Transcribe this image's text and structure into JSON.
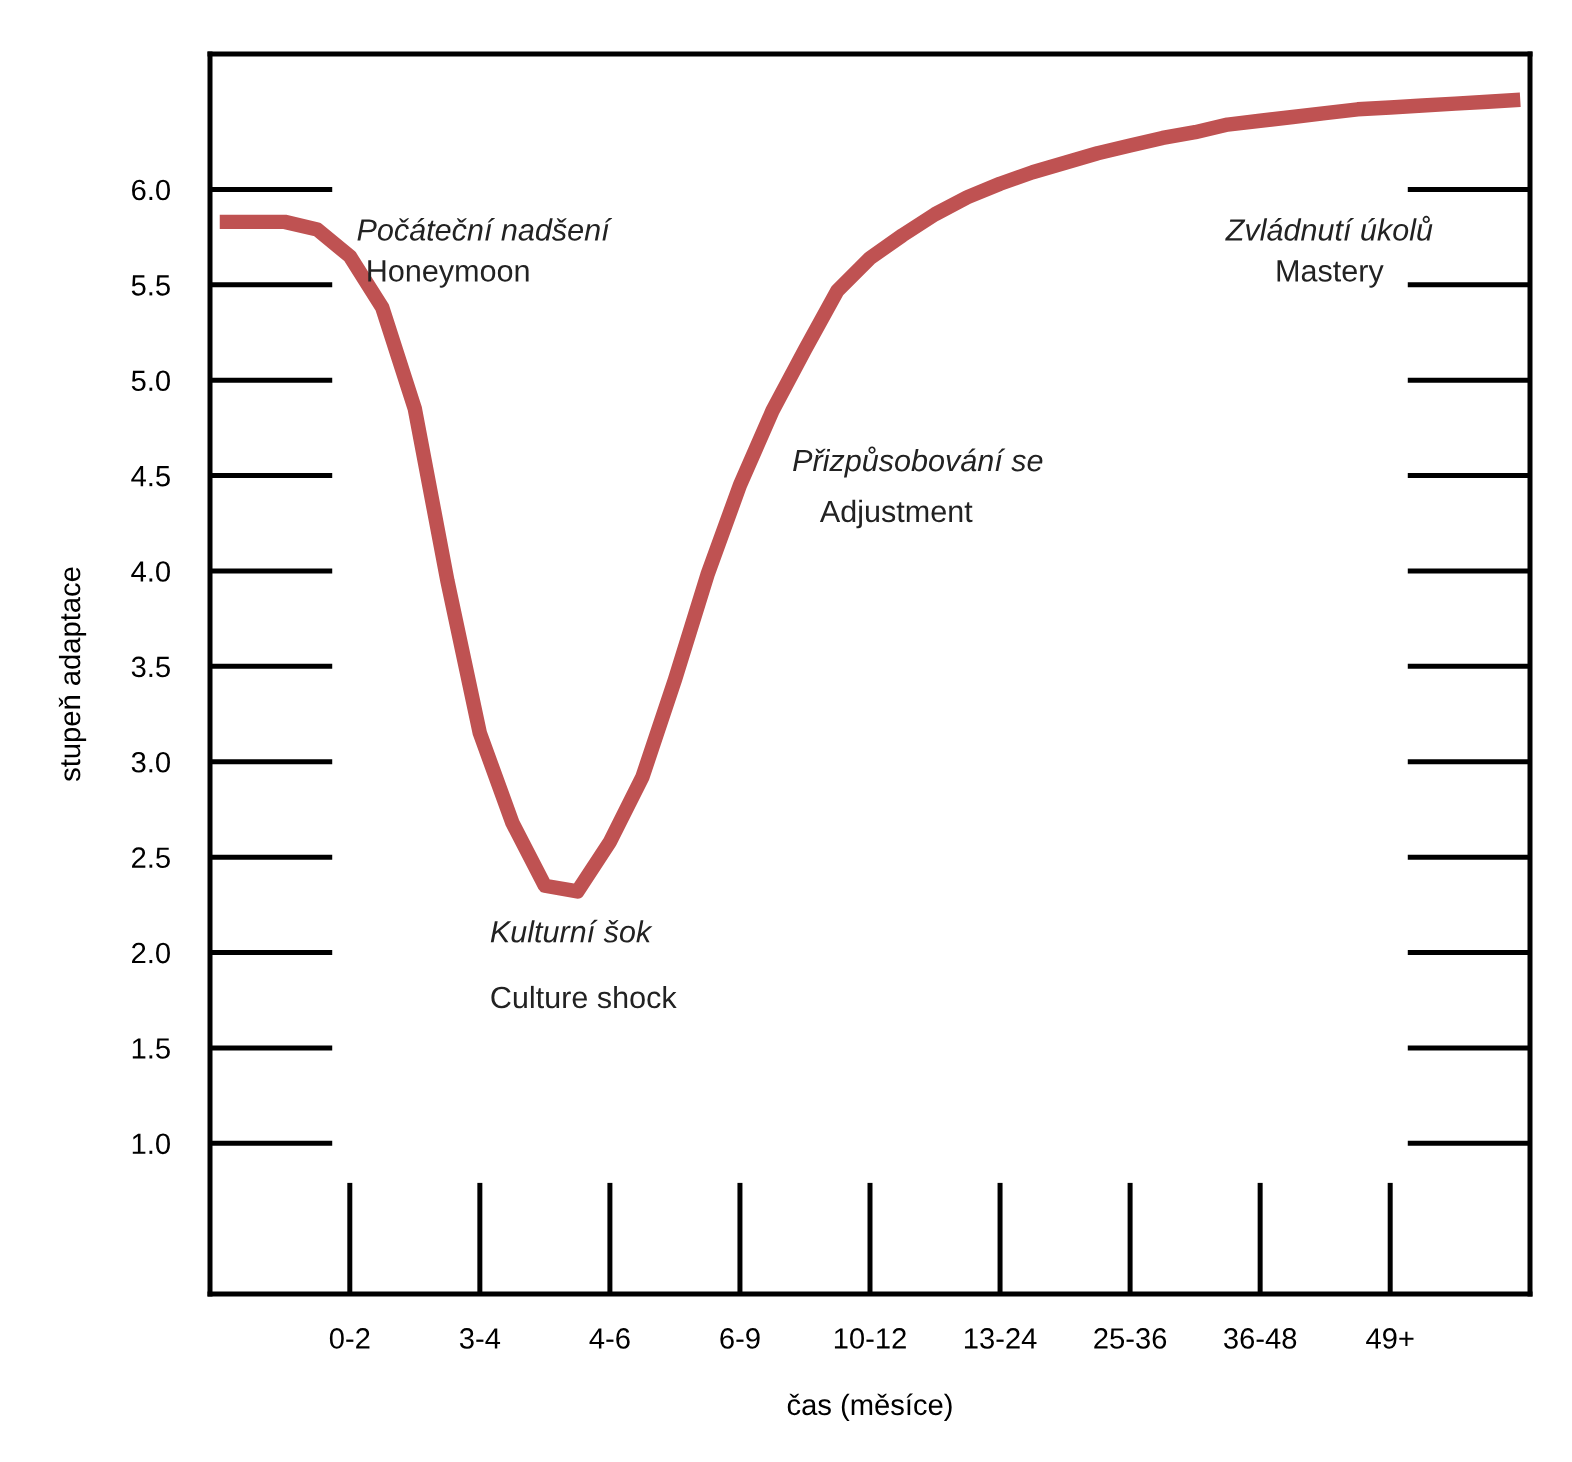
{
  "chart_data": {
    "type": "line",
    "xlabel": "čas (měsíce)",
    "ylabel": "stupeň adaptace",
    "categories": [
      null,
      null,
      null,
      null,
      "0-2",
      null,
      null,
      null,
      "3-4",
      null,
      null,
      null,
      "4-6",
      null,
      null,
      null,
      "6-9",
      null,
      null,
      null,
      "10-12",
      null,
      null,
      null,
      "13-24",
      null,
      null,
      null,
      "25-36",
      null,
      null,
      null,
      "36-48",
      null,
      null,
      null,
      "49+",
      null,
      null,
      null,
      null
    ],
    "ylim": [
      0.21,
      6.71
    ],
    "yticks": [
      {
        "value": 1,
        "label": "1.0"
      },
      1.5,
      {
        "value": 2,
        "label": "2.0"
      },
      2.5,
      {
        "value": 3,
        "label": "3.0"
      },
      3.5,
      {
        "value": 4,
        "label": "4.0"
      },
      4.5,
      {
        "value": 5,
        "label": "5.0"
      },
      5.5,
      {
        "value": 6,
        "label": "6.0"
      }
    ],
    "series": [
      {
        "color": "#bf5252",
        "values": [
          5.83,
          5.83,
          5.83,
          5.79,
          5.65,
          5.38,
          4.85,
          3.95,
          3.15,
          2.68,
          2.35,
          2.32,
          2.58,
          2.92,
          3.43,
          3.98,
          4.45,
          4.84,
          5.16,
          5.47,
          5.64,
          5.76,
          5.87,
          5.96,
          6.03,
          6.09,
          6.14,
          6.19,
          6.23,
          6.27,
          6.3,
          6.34,
          6.36,
          6.38,
          6.4,
          6.42,
          6.43,
          6.44,
          6.45,
          6.46,
          6.47
        ]
      }
    ],
    "annotations": [
      "Počáteční nadšení",
      "Honeymoon",
      "Kulturní šok",
      "Culture shock",
      "Přizpůsobování se",
      "Adjustment",
      "Zvládnutí úkolů",
      "Mastery"
    ],
    "grid": false,
    "legend": false,
    "marker": "none",
    "line_style": "solid"
  }
}
